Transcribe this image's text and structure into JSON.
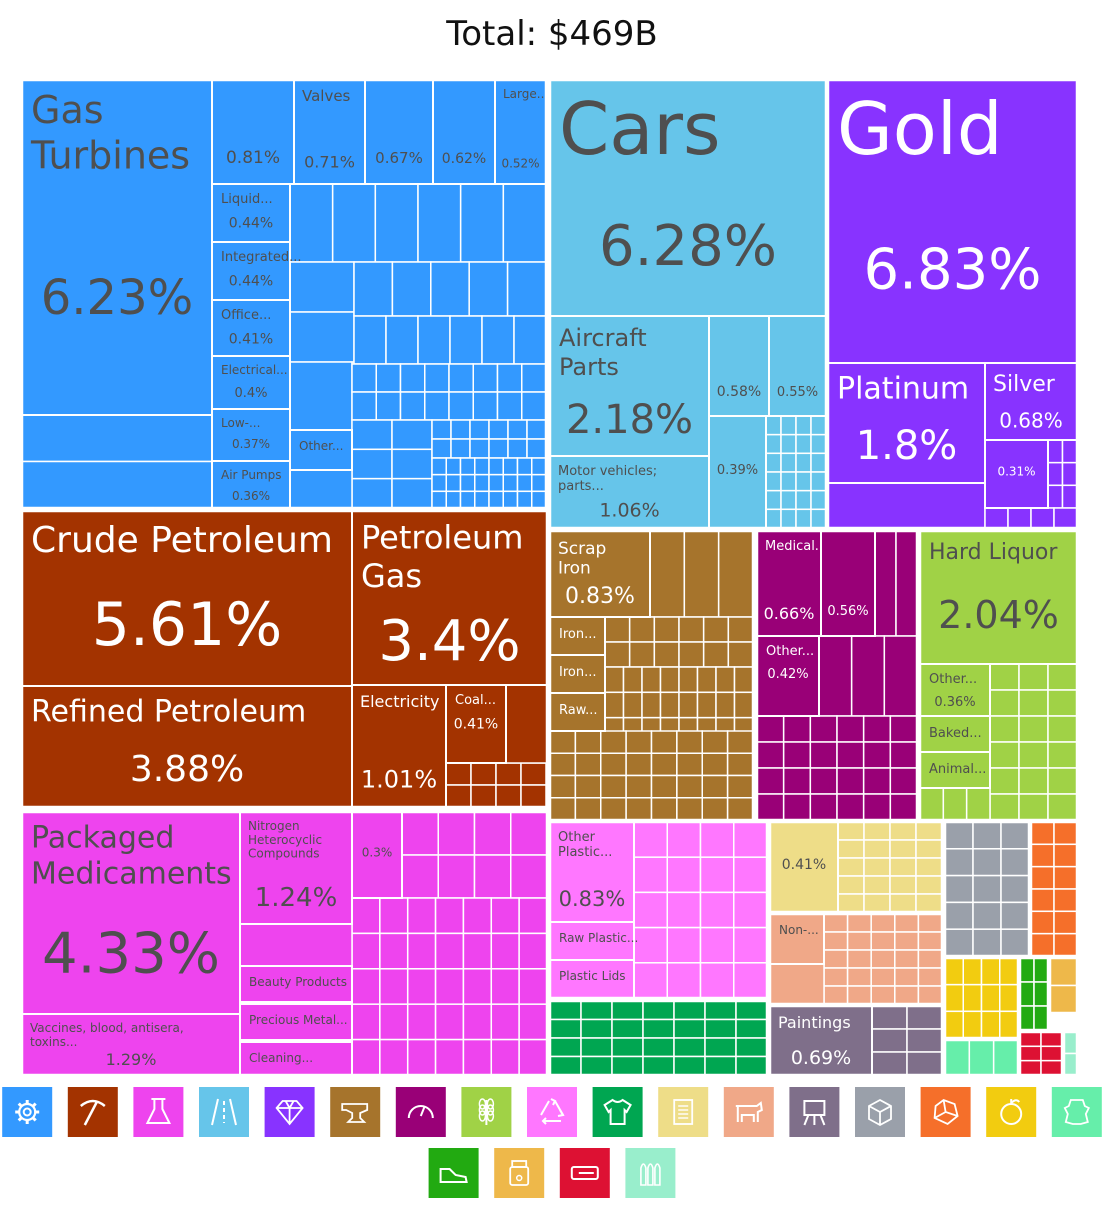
{
  "chart_data": {
    "type": "treemap",
    "title": "Total: $469B",
    "categories": [
      {
        "id": "machines",
        "icon": "gear-icon",
        "color": "#3399ff",
        "text_color": "#4f4f4f"
      },
      {
        "id": "mineral",
        "icon": "pickaxe-icon",
        "color": "#a33300",
        "text_color": "#ffffff"
      },
      {
        "id": "chemicals",
        "icon": "flask-icon",
        "color": "#ee44ee",
        "text_color": "#4f4f4f"
      },
      {
        "id": "transportation",
        "icon": "road-icon",
        "color": "#66c5ea",
        "text_color": "#4f4f4f"
      },
      {
        "id": "precious-metals",
        "icon": "diamond-icon",
        "color": "#8833ff",
        "text_color": "#ffffff"
      },
      {
        "id": "metals",
        "icon": "anvil-icon",
        "color": "#a6742c",
        "text_color": "#ffffff"
      },
      {
        "id": "instruments",
        "icon": "gauge-icon",
        "color": "#990077",
        "text_color": "#ffffff"
      },
      {
        "id": "foodstuffs",
        "icon": "wheat-icon",
        "color": "#a0d246",
        "text_color": "#4f4f4f"
      },
      {
        "id": "plastics",
        "icon": "recycle-icon",
        "color": "#ff77ff",
        "text_color": "#4f4f4f"
      },
      {
        "id": "textiles",
        "icon": "shirt-icon",
        "color": "#00a651",
        "text_color": "#ffffff"
      },
      {
        "id": "paper",
        "icon": "scroll-icon",
        "color": "#eedd88",
        "text_color": "#4f4f4f"
      },
      {
        "id": "animal-products",
        "icon": "cow-icon",
        "color": "#f0a888",
        "text_color": "#4f4f4f"
      },
      {
        "id": "arts",
        "icon": "easel-icon",
        "color": "#7f6f8a",
        "text_color": "#ffffff"
      },
      {
        "id": "misc",
        "icon": "box-icon",
        "color": "#9aa0aa",
        "text_color": "#ffffff"
      },
      {
        "id": "stone",
        "icon": "stone-icon",
        "color": "#f56f2a",
        "text_color": "#ffffff"
      },
      {
        "id": "vegetable",
        "icon": "fruit-icon",
        "color": "#f2cc10",
        "text_color": "#ffffff"
      },
      {
        "id": "hides",
        "icon": "hide-icon",
        "color": "#66eeaa",
        "text_color": "#4f4f4f"
      },
      {
        "id": "footwear",
        "icon": "shoe-icon",
        "color": "#22aa11",
        "text_color": "#ffffff"
      },
      {
        "id": "animal-veg-byproducts",
        "icon": "jar-icon",
        "color": "#eeb84a",
        "text_color": "#ffffff"
      },
      {
        "id": "weapons",
        "icon": "weapon-icon",
        "color": "#dd1133",
        "text_color": "#ffffff"
      },
      {
        "id": "bullets",
        "icon": "bullets-icon",
        "color": "#99eecc",
        "text_color": "#4f4f4f"
      }
    ],
    "blocks": [
      {
        "category": "machines",
        "items": [
          {
            "label": "Gas Turbines",
            "value": 6.23
          },
          {
            "label": "",
            "value": 0.81
          },
          {
            "label": "Valves",
            "value": 0.71
          },
          {
            "label": "",
            "value": 0.67
          },
          {
            "label": "",
            "value": 0.62
          },
          {
            "label": "Large...",
            "value": 0.52
          },
          {
            "label": "Liquid...",
            "value": 0.44
          },
          {
            "label": "Integrated...",
            "value": 0.44
          },
          {
            "label": "Office...",
            "value": 0.41
          },
          {
            "label": "Electrical...",
            "value": 0.4
          },
          {
            "label": "Low-...",
            "value": 0.37
          },
          {
            "label": "Air Pumps",
            "value": 0.36
          },
          {
            "label": "Other...",
            "value": null
          }
        ]
      },
      {
        "category": "transportation",
        "items": [
          {
            "label": "Cars",
            "value": 6.28
          },
          {
            "label": "Aircraft Parts",
            "value": 2.18
          },
          {
            "label": "Motor vehicles; parts...",
            "value": 1.06
          },
          {
            "label": "",
            "value": 0.58
          },
          {
            "label": "",
            "value": 0.55
          },
          {
            "label": "",
            "value": 0.39
          }
        ]
      },
      {
        "category": "precious-metals",
        "items": [
          {
            "label": "Gold",
            "value": 6.83
          },
          {
            "label": "Platinum",
            "value": 1.8
          },
          {
            "label": "Silver",
            "value": 0.68
          },
          {
            "label": "",
            "value": 0.31
          }
        ]
      },
      {
        "category": "mineral",
        "items": [
          {
            "label": "Crude Petroleum",
            "value": 5.61
          },
          {
            "label": "Petroleum Gas",
            "value": 3.4
          },
          {
            "label": "Refined Petroleum",
            "value": 3.88
          },
          {
            "label": "Electricity",
            "value": 1.01
          },
          {
            "label": "Coal...",
            "value": 0.41
          }
        ]
      },
      {
        "category": "metals",
        "items": [
          {
            "label": "Scrap Iron",
            "value": 0.83
          },
          {
            "label": "Iron...",
            "value": null
          },
          {
            "label": "Iron...",
            "value": null
          },
          {
            "label": "Raw...",
            "value": null
          }
        ]
      },
      {
        "category": "instruments",
        "items": [
          {
            "label": "Medical...",
            "value": 0.66
          },
          {
            "label": "",
            "value": 0.56
          },
          {
            "label": "Other...",
            "value": 0.42
          }
        ]
      },
      {
        "category": "foodstuffs",
        "items": [
          {
            "label": "Hard Liquor",
            "value": 2.04
          },
          {
            "label": "Other...",
            "value": 0.36
          },
          {
            "label": "Baked...",
            "value": null
          },
          {
            "label": "Animal...",
            "value": null
          }
        ]
      },
      {
        "category": "chemicals",
        "items": [
          {
            "label": "Packaged Medicaments",
            "value": 4.33
          },
          {
            "label": "Nitrogen Heterocyclic Compounds",
            "value": 1.24
          },
          {
            "label": "Vaccines, blood, antisera, toxins...",
            "value": 1.29
          },
          {
            "label": "",
            "value": 0.3
          },
          {
            "label": "Beauty Products",
            "value": null
          },
          {
            "label": "Precious Metal...",
            "value": null
          },
          {
            "label": "Cleaning...",
            "value": null
          }
        ]
      },
      {
        "category": "plastics",
        "items": [
          {
            "label": "Other Plastic...",
            "value": 0.83
          },
          {
            "label": "Raw Plastic...",
            "value": null
          },
          {
            "label": "Plastic Lids",
            "value": null
          }
        ]
      },
      {
        "category": "paper",
        "items": [
          {
            "label": "",
            "value": 0.41
          }
        ]
      },
      {
        "category": "animal-products",
        "items": [
          {
            "label": "Non-...",
            "value": null
          }
        ]
      },
      {
        "category": "arts",
        "items": [
          {
            "label": "Paintings",
            "value": 0.69
          }
        ]
      },
      {
        "category": "textiles",
        "items": []
      },
      {
        "category": "misc",
        "items": []
      },
      {
        "category": "stone",
        "items": []
      },
      {
        "category": "vegetable",
        "items": []
      },
      {
        "category": "hides",
        "items": []
      },
      {
        "category": "footwear",
        "items": []
      },
      {
        "category": "animal-veg-byproducts",
        "items": []
      },
      {
        "category": "weapons",
        "items": []
      },
      {
        "category": "bullets",
        "items": []
      }
    ]
  }
}
